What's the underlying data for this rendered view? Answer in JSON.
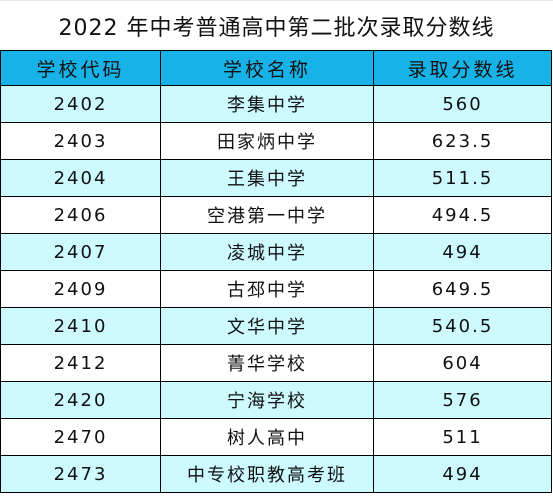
{
  "title": "2022 年中考普通高中第二批次录取分数线",
  "headers": [
    "学校代码",
    "学校名称",
    "录取分数线"
  ],
  "rows": [
    {
      "code": "2402",
      "name": "李集中学",
      "score": "560"
    },
    {
      "code": "2403",
      "name": "田家炳中学",
      "score": "623.5"
    },
    {
      "code": "2404",
      "name": "王集中学",
      "score": "511.5"
    },
    {
      "code": "2406",
      "name": "空港第一中学",
      "score": "494.5"
    },
    {
      "code": "2407",
      "name": "凌城中学",
      "score": "494"
    },
    {
      "code": "2409",
      "name": "古邳中学",
      "score": "649.5"
    },
    {
      "code": "2410",
      "name": "文华中学",
      "score": "540.5"
    },
    {
      "code": "2412",
      "name": "菁华学校",
      "score": "604"
    },
    {
      "code": "2420",
      "name": "宁海学校",
      "score": "576"
    },
    {
      "code": "2470",
      "name": "树人高中",
      "score": "511"
    },
    {
      "code": "2473",
      "name": "中专校职教高考班",
      "score": "494"
    }
  ],
  "colors": {
    "header_bg": "#17b3e8",
    "row_alt_bg": "#ccfaff",
    "row_plain_bg": "#ffffff"
  }
}
